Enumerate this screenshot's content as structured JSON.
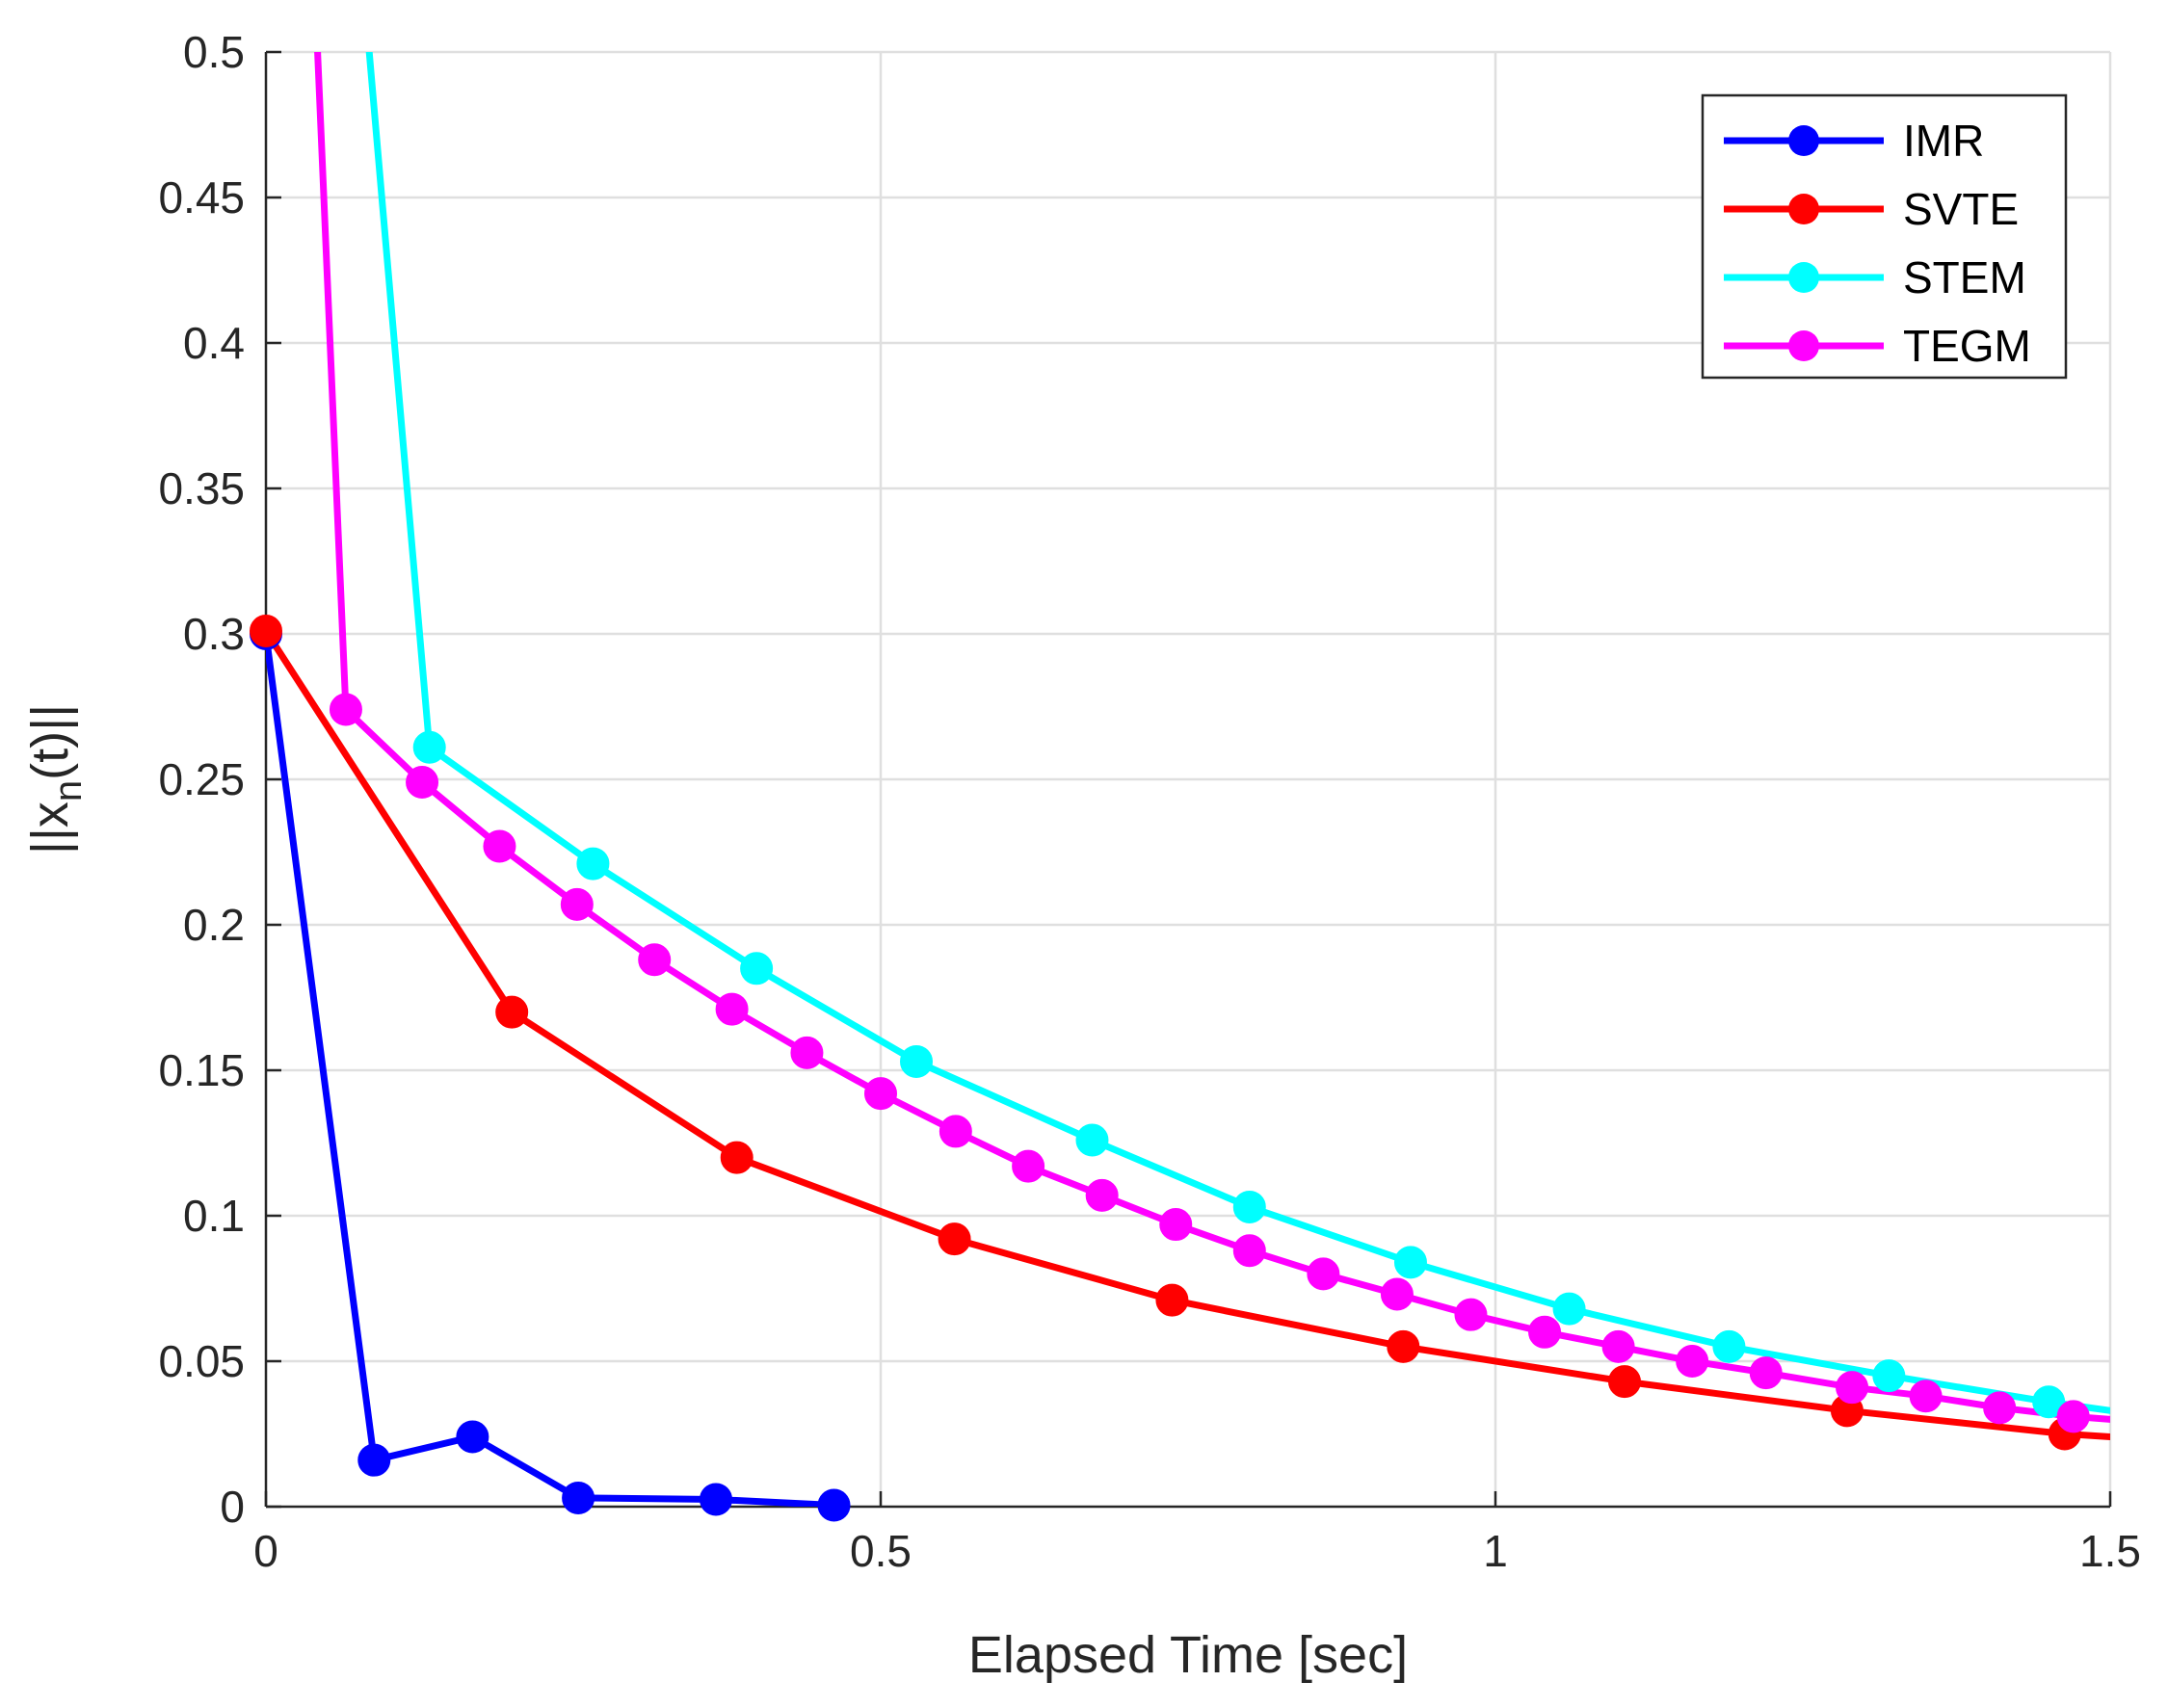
{
  "chart_data": {
    "type": "line",
    "title": "",
    "xlabel": "Elapsed Time [sec]",
    "ylabel_parts": {
      "pre": "||x",
      "sub": "n",
      "post": "(t)||"
    },
    "xlim": [
      0,
      1.5
    ],
    "ylim": [
      0,
      0.5
    ],
    "grid": true,
    "legend_position": "top-right",
    "x_ticks": [
      0,
      0.5,
      1,
      1.5
    ],
    "x_tick_labels": [
      "0",
      "0.5",
      "1",
      "1.5"
    ],
    "y_ticks": [
      0,
      0.05,
      0.1,
      0.15,
      0.2,
      0.25,
      0.3,
      0.35,
      0.4,
      0.45,
      0.5
    ],
    "y_tick_labels": [
      "0",
      "0.05",
      "0.1",
      "0.15",
      "0.2",
      "0.25",
      "0.3",
      "0.35",
      "0.4",
      "0.45",
      "0.5"
    ],
    "series": [
      {
        "name": "IMR",
        "color": "#0000ff",
        "points": [
          [
            0,
            0.3
          ],
          [
            0.088,
            0.016
          ],
          [
            0.168,
            0.024
          ],
          [
            0.254,
            0.003
          ],
          [
            0.366,
            0.0025
          ],
          [
            0.462,
            0.0005
          ]
        ]
      },
      {
        "name": "SVTE",
        "color": "#ff0000",
        "points": [
          [
            0,
            0.301
          ],
          [
            0.2,
            0.17
          ],
          [
            0.383,
            0.12
          ],
          [
            0.56,
            0.092
          ],
          [
            0.737,
            0.071
          ],
          [
            0.925,
            0.055
          ],
          [
            1.105,
            0.043
          ],
          [
            1.286,
            0.033
          ],
          [
            1.463,
            0.025
          ],
          [
            1.5,
            0.024
          ]
        ]
      },
      {
        "name": "STEM",
        "color": "#00ffff",
        "points": [
          [
            0.084,
            0.5
          ],
          [
            0.133,
            0.261
          ],
          [
            0.266,
            0.221
          ],
          [
            0.399,
            0.185
          ],
          [
            0.529,
            0.153
          ],
          [
            0.672,
            0.126
          ],
          [
            0.8,
            0.103
          ],
          [
            0.931,
            0.084
          ],
          [
            1.06,
            0.068
          ],
          [
            1.19,
            0.055
          ],
          [
            1.32,
            0.045
          ],
          [
            1.45,
            0.036
          ],
          [
            1.5,
            0.033
          ]
        ]
      },
      {
        "name": "TEGM",
        "color": "#ff00ff",
        "markers_from": 1,
        "points": [
          [
            0.042,
            0.5
          ],
          [
            0.065,
            0.274
          ],
          [
            0.127,
            0.249
          ],
          [
            0.19,
            0.227
          ],
          [
            0.253,
            0.207
          ],
          [
            0.316,
            0.188
          ],
          [
            0.379,
            0.171
          ],
          [
            0.44,
            0.156
          ],
          [
            0.5,
            0.142
          ],
          [
            0.561,
            0.129
          ],
          [
            0.62,
            0.117
          ],
          [
            0.68,
            0.107
          ],
          [
            0.74,
            0.097
          ],
          [
            0.8,
            0.088
          ],
          [
            0.86,
            0.08
          ],
          [
            0.92,
            0.073
          ],
          [
            0.98,
            0.066
          ],
          [
            1.04,
            0.06
          ],
          [
            1.1,
            0.055
          ],
          [
            1.16,
            0.05
          ],
          [
            1.22,
            0.046
          ],
          [
            1.29,
            0.041
          ],
          [
            1.35,
            0.038
          ],
          [
            1.41,
            0.034
          ],
          [
            1.47,
            0.031
          ],
          [
            1.5,
            0.03
          ]
        ]
      }
    ]
  }
}
